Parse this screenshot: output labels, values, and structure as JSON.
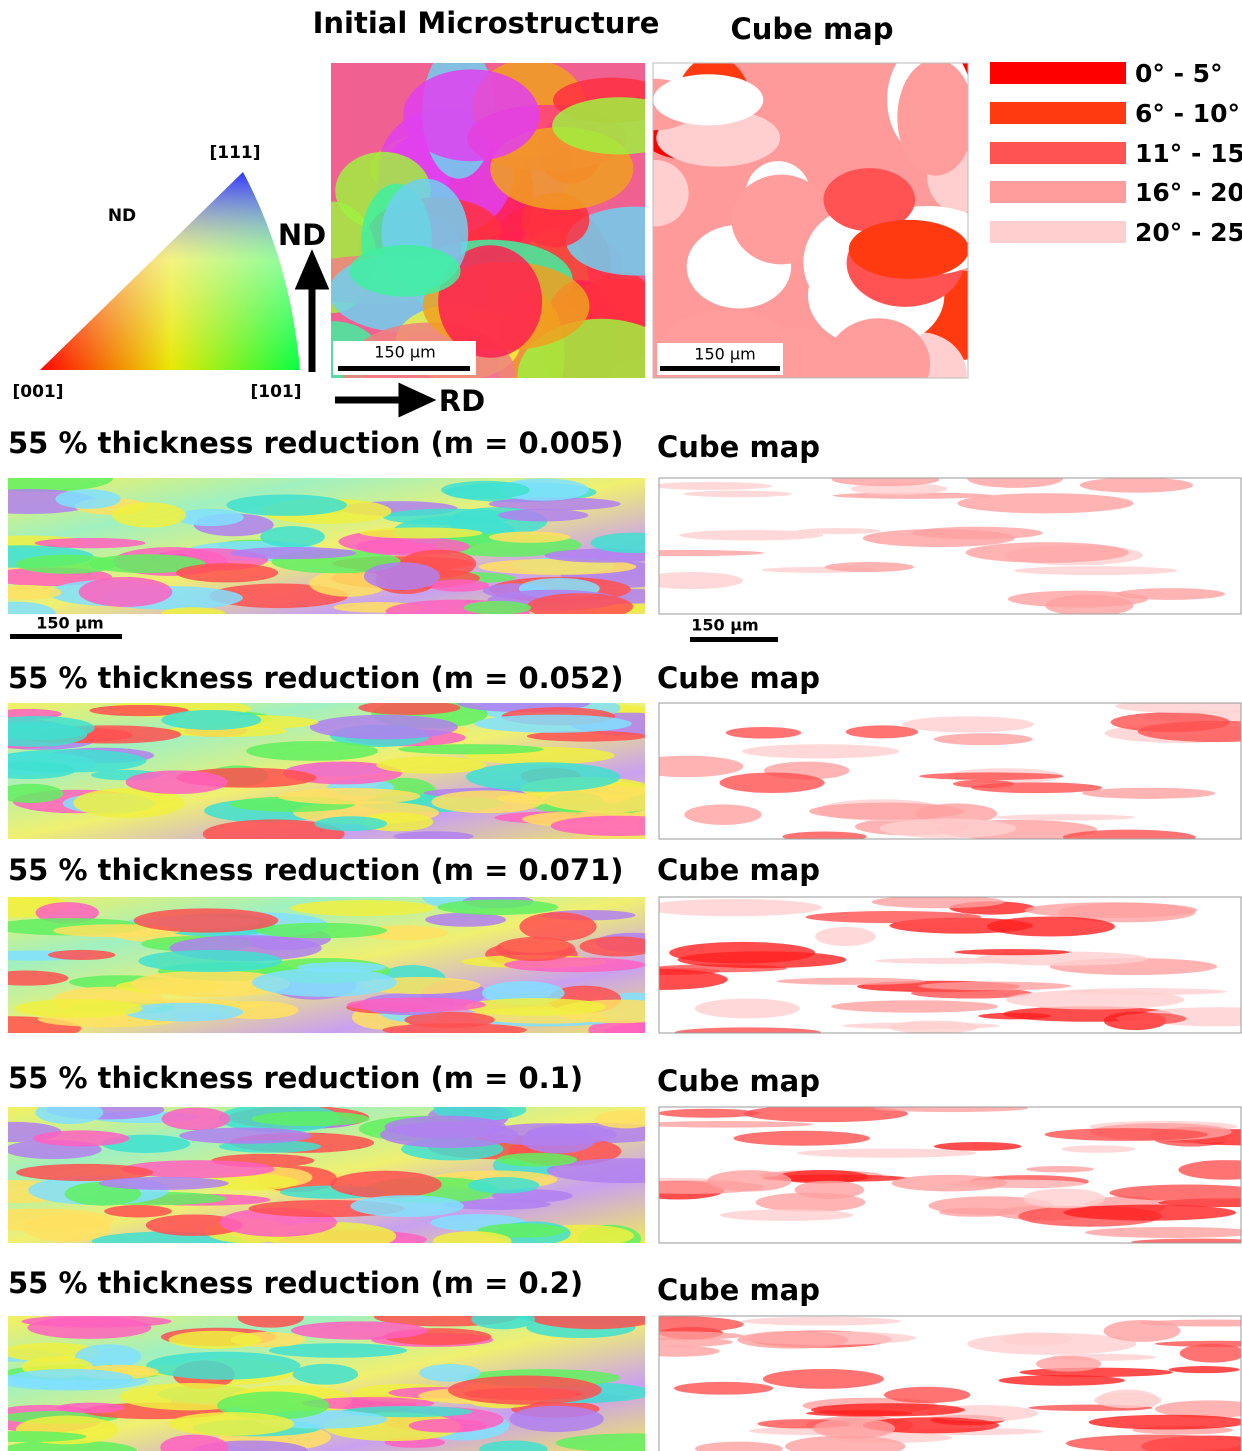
{
  "header": {
    "initial_title": "Initial Microstructure",
    "cube_title": "Cube map"
  },
  "ipf": {
    "top": "[111]",
    "center": "ND",
    "left": "[001]",
    "right": "[101]"
  },
  "axes": {
    "vertical": "ND",
    "horizontal": "RD"
  },
  "scale_bar": "150 µm",
  "legend": [
    {
      "label": "0° - 5°",
      "color": "#ff0000"
    },
    {
      "label": "6° - 10°",
      "color": "#ff3a10"
    },
    {
      "label": "11° - 15°",
      "color": "#ff5252"
    },
    {
      "label": "16° - 20°",
      "color": "#ff9c9c"
    },
    {
      "label": "20° - 25°",
      "color": "#ffcfcf"
    }
  ],
  "rows": [
    {
      "title": "55 % thickness reduction (m = 0.005)",
      "cube_title": "Cube map"
    },
    {
      "title": "55 % thickness reduction (m = 0.052)",
      "cube_title": "Cube map"
    },
    {
      "title": "55 % thickness reduction (m = 0.071)",
      "cube_title": "Cube map"
    },
    {
      "title": "55 % thickness reduction (m = 0.1)",
      "cube_title": "Cube map"
    },
    {
      "title": "55 % thickness reduction (m = 0.2)",
      "cube_title": "Cube map"
    }
  ]
}
